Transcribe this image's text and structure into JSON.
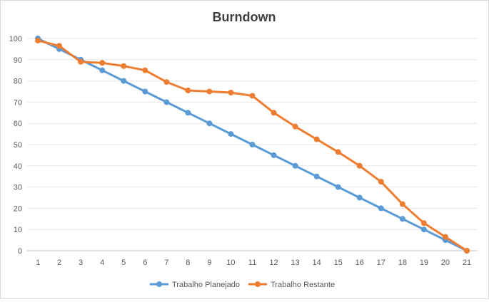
{
  "chart_data": {
    "type": "line",
    "title": "Burndown",
    "xlabel": "",
    "ylabel": "",
    "categories": [
      "1",
      "2",
      "3",
      "4",
      "5",
      "6",
      "7",
      "8",
      "9",
      "10",
      "11",
      "12",
      "13",
      "14",
      "15",
      "16",
      "17",
      "18",
      "19",
      "20",
      "21"
    ],
    "ylim": [
      0,
      100
    ],
    "yticks": [
      0,
      10,
      20,
      30,
      40,
      50,
      60,
      70,
      80,
      90,
      100
    ],
    "grid": true,
    "legend_position": "bottom",
    "series": [
      {
        "name": "Trabalho Planejado",
        "color": "#5B9BD5",
        "values": [
          100,
          95,
          90,
          85,
          80,
          75,
          70,
          65,
          60,
          55,
          50,
          45,
          40,
          35,
          30,
          25,
          20,
          15,
          10,
          5,
          0
        ]
      },
      {
        "name": "Trabalho Restante",
        "color": "#ED7D31",
        "values": [
          99,
          96.5,
          89,
          88.5,
          87,
          85,
          79.5,
          75.5,
          75,
          74.5,
          73,
          65,
          58.5,
          52.5,
          46.5,
          40,
          32.5,
          22,
          13,
          6.5,
          0
        ]
      }
    ]
  }
}
